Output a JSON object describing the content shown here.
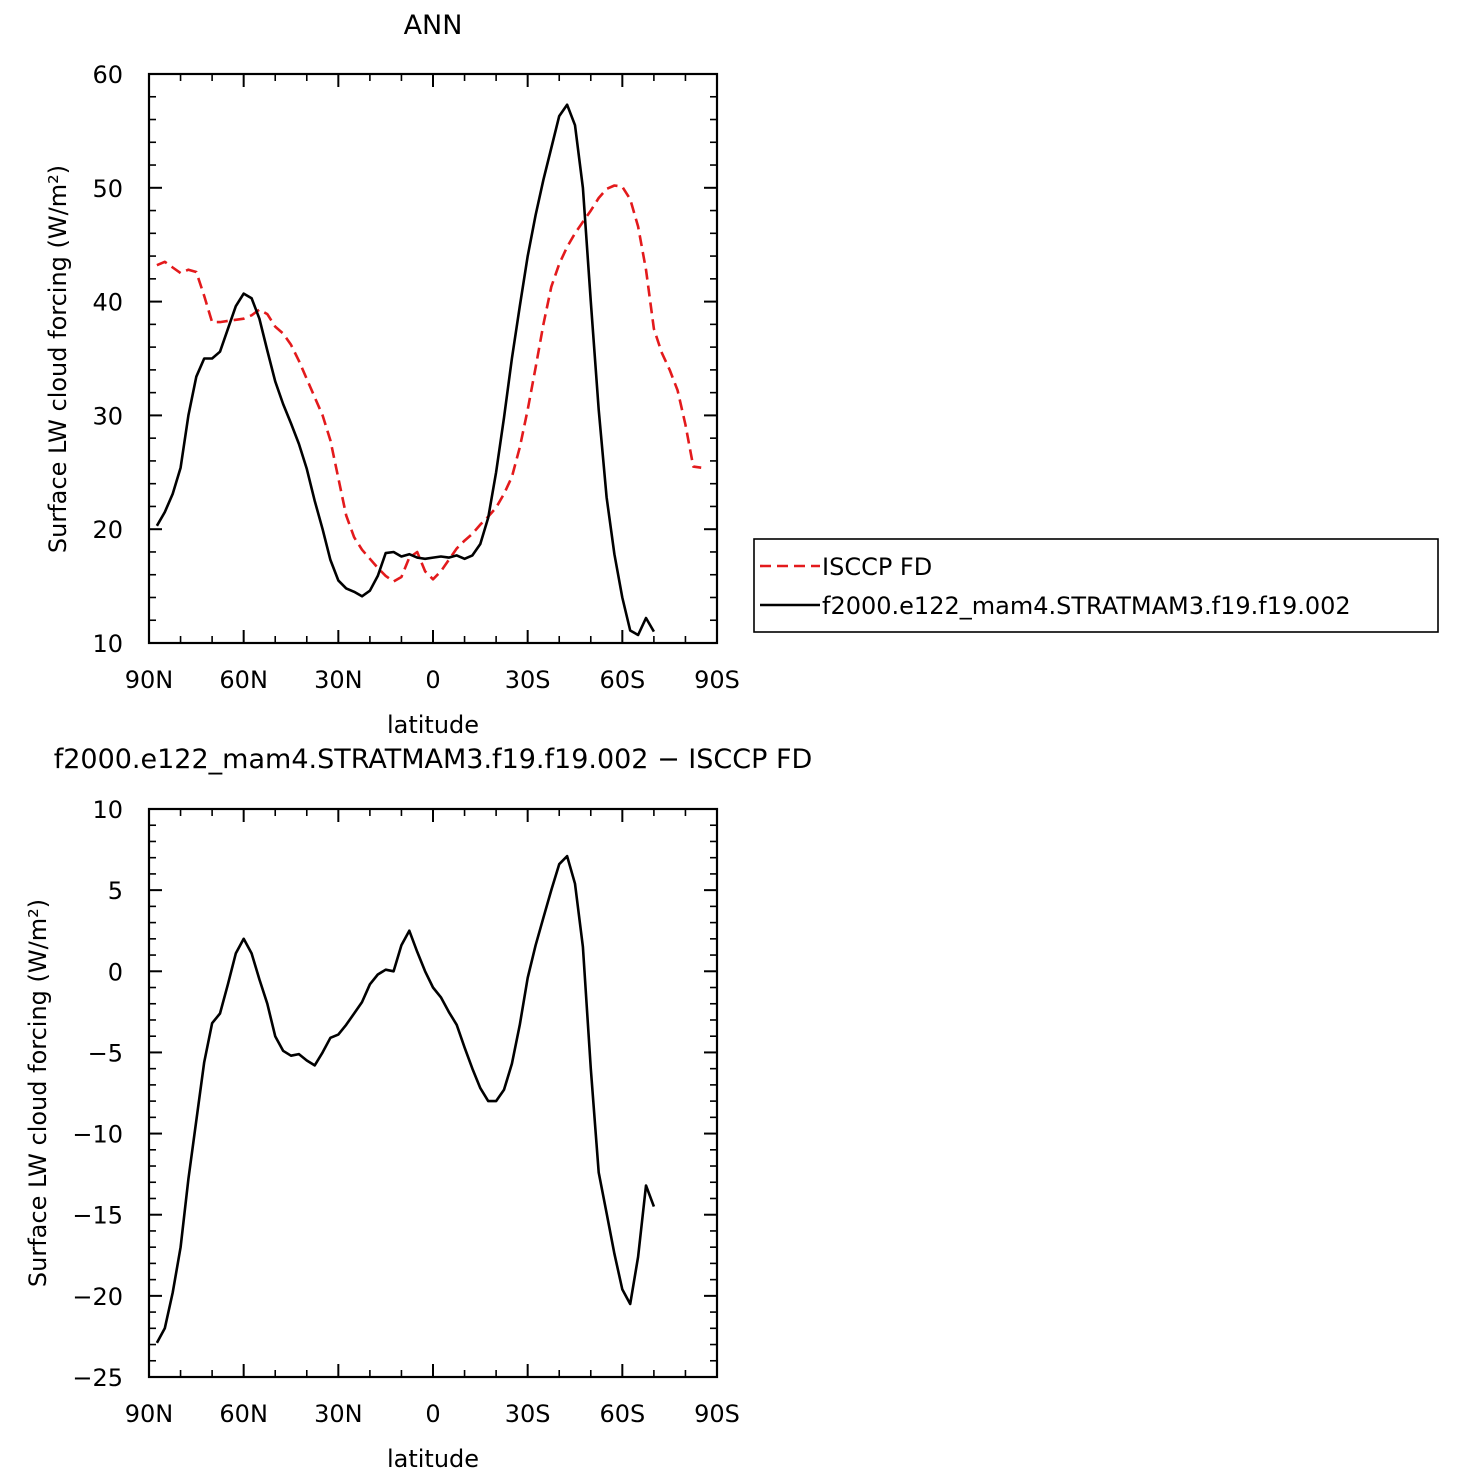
{
  "chart_data": [
    {
      "type": "line",
      "title": "ANN",
      "xlabel": "latitude",
      "ylabel": "Surface LW cloud forcing (W/m²)",
      "xlim": [
        90,
        -90
      ],
      "ylim": [
        10,
        60
      ],
      "xticks": [
        {
          "value": 90,
          "label": "90N"
        },
        {
          "value": 60,
          "label": "60N"
        },
        {
          "value": 30,
          "label": "30N"
        },
        {
          "value": 0,
          "label": "0"
        },
        {
          "value": -30,
          "label": "30S"
        },
        {
          "value": -60,
          "label": "60S"
        },
        {
          "value": -90,
          "label": "90S"
        }
      ],
      "yticks": [
        10,
        20,
        30,
        40,
        50,
        60
      ],
      "legend_position": "right",
      "series": [
        {
          "name": "ISCCP FD",
          "color": "#e31a1c",
          "dash": "dashed",
          "points": [
            [
              87.5,
              43.2
            ],
            [
              85,
              43.5
            ],
            [
              82.5,
              43.0
            ],
            [
              80,
              42.5
            ],
            [
              77.5,
              42.8
            ],
            [
              75,
              42.6
            ],
            [
              72.5,
              40.5
            ],
            [
              70,
              38.2
            ],
            [
              67.5,
              38.2
            ],
            [
              65,
              38.3
            ],
            [
              62.5,
              38.4
            ],
            [
              60,
              38.5
            ],
            [
              57.5,
              38.8
            ],
            [
              55,
              39.3
            ],
            [
              52.5,
              38.9
            ],
            [
              50,
              37.8
            ],
            [
              47.5,
              37.2
            ],
            [
              45,
              36.2
            ],
            [
              42.5,
              34.8
            ],
            [
              40,
              33.2
            ],
            [
              37.5,
              31.6
            ],
            [
              35,
              30.0
            ],
            [
              32.5,
              27.8
            ],
            [
              30,
              24.5
            ],
            [
              27.5,
              21.2
            ],
            [
              25,
              19.3
            ],
            [
              22.5,
              18.2
            ],
            [
              20,
              17.4
            ],
            [
              17.5,
              16.6
            ],
            [
              15,
              15.9
            ],
            [
              12.5,
              15.4
            ],
            [
              10,
              15.8
            ],
            [
              7.5,
              17.5
            ],
            [
              5,
              18.0
            ],
            [
              2.5,
              16.3
            ],
            [
              0,
              15.6
            ],
            [
              -2.5,
              16.3
            ],
            [
              -5,
              17.3
            ],
            [
              -7.5,
              18.3
            ],
            [
              -10,
              19.0
            ],
            [
              -12.5,
              19.6
            ],
            [
              -15,
              20.4
            ],
            [
              -17.5,
              21.1
            ],
            [
              -20,
              21.9
            ],
            [
              -22.5,
              23.1
            ],
            [
              -25,
              24.6
            ],
            [
              -27.5,
              27.2
            ],
            [
              -30,
              30.5
            ],
            [
              -32.5,
              34.2
            ],
            [
              -35,
              38.0
            ],
            [
              -37.5,
              41.3
            ],
            [
              -40,
              43.3
            ],
            [
              -42.5,
              44.8
            ],
            [
              -45,
              46.0
            ],
            [
              -47.5,
              47.0
            ],
            [
              -50,
              48.0
            ],
            [
              -52.5,
              49.1
            ],
            [
              -55,
              49.9
            ],
            [
              -57.5,
              50.2
            ],
            [
              -60,
              50.1
            ],
            [
              -62.5,
              49.0
            ],
            [
              -65,
              46.6
            ],
            [
              -67.5,
              42.8
            ],
            [
              -70,
              37.6
            ],
            [
              -72.5,
              35.5
            ],
            [
              -75,
              34.0
            ],
            [
              -77.5,
              32.2
            ],
            [
              -80,
              29.2
            ],
            [
              -82.5,
              25.5
            ],
            [
              -85,
              25.4
            ]
          ]
        },
        {
          "name": "f2000.e122_mam4.STRATMAM3.f19.f19.002",
          "color": "#000000",
          "dash": "solid",
          "points": [
            [
              87.5,
              20.3
            ],
            [
              85,
              21.5
            ],
            [
              82.5,
              23.1
            ],
            [
              80,
              25.4
            ],
            [
              77.5,
              30.0
            ],
            [
              75,
              33.4
            ],
            [
              72.5,
              35.0
            ],
            [
              70,
              35.0
            ],
            [
              67.5,
              35.6
            ],
            [
              65,
              37.6
            ],
            [
              62.5,
              39.6
            ],
            [
              60,
              40.7
            ],
            [
              57.5,
              40.3
            ],
            [
              55,
              38.5
            ],
            [
              52.5,
              35.7
            ],
            [
              50,
              33.0
            ],
            [
              47.5,
              31.0
            ],
            [
              45,
              29.3
            ],
            [
              42.5,
              27.5
            ],
            [
              40,
              25.3
            ],
            [
              37.5,
              22.5
            ],
            [
              35,
              20.0
            ],
            [
              32.5,
              17.3
            ],
            [
              30,
              15.5
            ],
            [
              27.5,
              14.8
            ],
            [
              25,
              14.5
            ],
            [
              22.5,
              14.1
            ],
            [
              20,
              14.6
            ],
            [
              17.5,
              15.9
            ],
            [
              15,
              17.9
            ],
            [
              12.5,
              18.0
            ],
            [
              10,
              17.6
            ],
            [
              7.5,
              17.8
            ],
            [
              5,
              17.5
            ],
            [
              2.5,
              17.4
            ],
            [
              0,
              17.5
            ],
            [
              -2.5,
              17.6
            ],
            [
              -5,
              17.5
            ],
            [
              -7.5,
              17.7
            ],
            [
              -10,
              17.4
            ],
            [
              -12.5,
              17.7
            ],
            [
              -15,
              18.7
            ],
            [
              -17.5,
              21.0
            ],
            [
              -20,
              25.0
            ],
            [
              -22.5,
              29.8
            ],
            [
              -25,
              35.0
            ],
            [
              -27.5,
              39.6
            ],
            [
              -30,
              44.0
            ],
            [
              -32.5,
              47.6
            ],
            [
              -35,
              50.7
            ],
            [
              -37.5,
              53.5
            ],
            [
              -40,
              56.3
            ],
            [
              -42.5,
              57.3
            ],
            [
              -45,
              55.5
            ],
            [
              -47.5,
              50.0
            ],
            [
              -50,
              40.0
            ],
            [
              -52.5,
              30.5
            ],
            [
              -55,
              22.8
            ],
            [
              -57.5,
              17.8
            ],
            [
              -60,
              14.0
            ],
            [
              -62.5,
              11.1
            ],
            [
              -65,
              10.7
            ],
            [
              -67.5,
              12.2
            ],
            [
              -70,
              11.0
            ]
          ]
        }
      ]
    },
    {
      "type": "line",
      "title": "f2000.e122_mam4.STRATMAM3.f19.f19.002 − ISCCP FD",
      "xlabel": "latitude",
      "ylabel": "Surface LW cloud forcing (W/m²)",
      "xlim": [
        90,
        -90
      ],
      "ylim": [
        -25,
        10
      ],
      "xticks": [
        {
          "value": 90,
          "label": "90N"
        },
        {
          "value": 60,
          "label": "60N"
        },
        {
          "value": 30,
          "label": "30N"
        },
        {
          "value": 0,
          "label": "0"
        },
        {
          "value": -30,
          "label": "30S"
        },
        {
          "value": -60,
          "label": "60S"
        },
        {
          "value": -90,
          "label": "90S"
        }
      ],
      "yticks": [
        -25,
        -20,
        -15,
        -10,
        -5,
        0,
        5,
        10
      ],
      "series": [
        {
          "color": "#000000",
          "dash": "solid",
          "points": [
            [
              87.5,
              -22.9
            ],
            [
              85,
              -22.0
            ],
            [
              82.5,
              -19.8
            ],
            [
              80,
              -17.0
            ],
            [
              77.5,
              -12.8
            ],
            [
              75,
              -9.2
            ],
            [
              72.5,
              -5.6
            ],
            [
              70,
              -3.2
            ],
            [
              67.5,
              -2.6
            ],
            [
              65,
              -0.8
            ],
            [
              62.5,
              1.1
            ],
            [
              60,
              2.0
            ],
            [
              57.5,
              1.1
            ],
            [
              55,
              -0.5
            ],
            [
              52.5,
              -2.0
            ],
            [
              50,
              -4.0
            ],
            [
              47.5,
              -4.9
            ],
            [
              45,
              -5.2
            ],
            [
              42.5,
              -5.1
            ],
            [
              40,
              -5.5
            ],
            [
              37.5,
              -5.8
            ],
            [
              35,
              -5.0
            ],
            [
              32.5,
              -4.1
            ],
            [
              30,
              -3.9
            ],
            [
              27.5,
              -3.3
            ],
            [
              25,
              -2.6
            ],
            [
              22.5,
              -1.9
            ],
            [
              20,
              -0.8
            ],
            [
              17.5,
              -0.2
            ],
            [
              15,
              0.1
            ],
            [
              12.5,
              0.0
            ],
            [
              10,
              1.6
            ],
            [
              7.5,
              2.5
            ],
            [
              5,
              1.2
            ],
            [
              2.5,
              0.0
            ],
            [
              0,
              -1.0
            ],
            [
              -2.5,
              -1.6
            ],
            [
              -5,
              -2.5
            ],
            [
              -7.5,
              -3.3
            ],
            [
              -10,
              -4.7
            ],
            [
              -12.5,
              -6.0
            ],
            [
              -15,
              -7.2
            ],
            [
              -17.5,
              -8.0
            ],
            [
              -20,
              -8.0
            ],
            [
              -22.5,
              -7.3
            ],
            [
              -25,
              -5.7
            ],
            [
              -27.5,
              -3.3
            ],
            [
              -30,
              -0.4
            ],
            [
              -32.5,
              1.6
            ],
            [
              -35,
              3.3
            ],
            [
              -37.5,
              5.0
            ],
            [
              -40,
              6.6
            ],
            [
              -42.5,
              7.1
            ],
            [
              -45,
              5.4
            ],
            [
              -47.5,
              1.5
            ],
            [
              -50,
              -6.0
            ],
            [
              -52.5,
              -12.4
            ],
            [
              -55,
              -14.9
            ],
            [
              -57.5,
              -17.4
            ],
            [
              -60,
              -19.6
            ],
            [
              -62.5,
              -20.5
            ],
            [
              -65,
              -17.6
            ],
            [
              -67.5,
              -13.2
            ],
            [
              -70,
              -14.5
            ]
          ]
        }
      ]
    }
  ]
}
